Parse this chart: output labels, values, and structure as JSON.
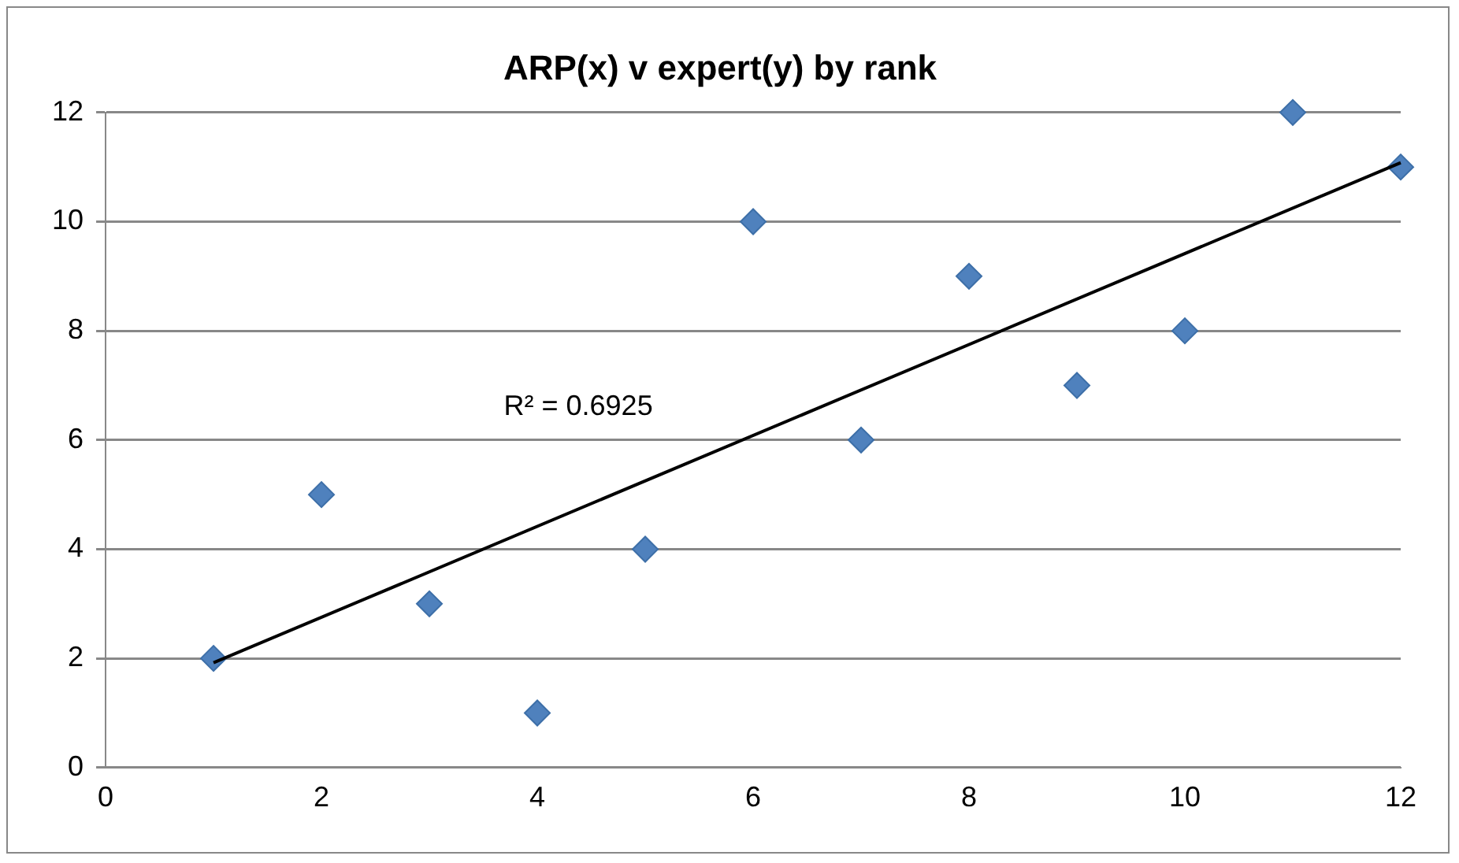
{
  "chart_data": {
    "type": "scatter",
    "title": "ARP(x) v expert(y) by rank",
    "xlim": [
      0,
      12
    ],
    "xticks": [
      0,
      2,
      4,
      6,
      8,
      10,
      12
    ],
    "ylim": [
      0,
      12
    ],
    "yticks": [
      0,
      2,
      4,
      6,
      8,
      10,
      12
    ],
    "grid": "y",
    "legend": false,
    "marker": "diamond",
    "series": [
      {
        "color": "#4f81bd",
        "x": [
          1,
          2,
          3,
          4,
          5,
          6,
          7,
          8,
          9,
          10,
          11,
          12
        ],
        "values": [
          2,
          5,
          3,
          1,
          4,
          10,
          6,
          9,
          7,
          8,
          12,
          11
        ]
      },
      {
        "type": "line",
        "color": "#000000",
        "marker": "none",
        "x": [
          1,
          12
        ],
        "values": [
          1.92,
          11.08
        ]
      }
    ],
    "annotations": [
      "R² = 0.6925"
    ]
  }
}
